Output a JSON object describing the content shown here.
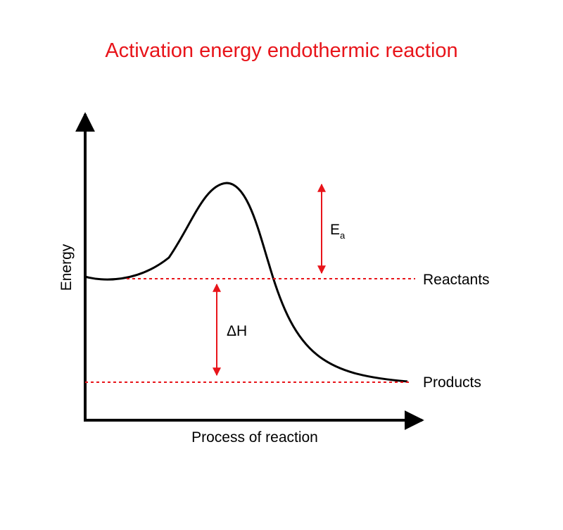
{
  "title": "Activation energy endothermic reaction",
  "axes": {
    "y_label": "Energy",
    "x_label": "Process of reaction"
  },
  "levels": {
    "reactants_label": "Reactants",
    "products_label": "Products"
  },
  "annotations": {
    "activation_energy_letter": "E",
    "activation_energy_subscript": "a",
    "enthalpy_change": "ΔH"
  },
  "colors": {
    "title": "#e8141a",
    "accent": "#e8141a",
    "axis": "#000000",
    "curve": "#000000",
    "text": "#000000"
  }
}
